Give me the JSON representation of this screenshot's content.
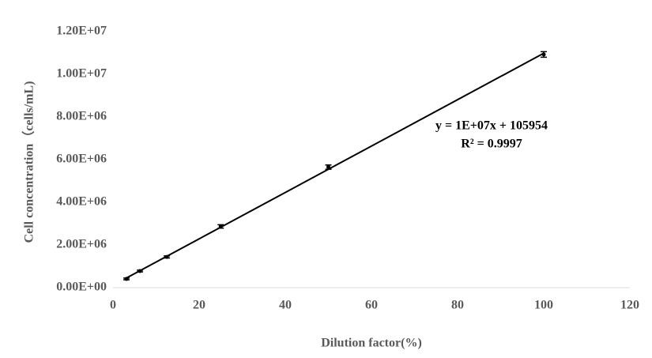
{
  "chart_data": {
    "type": "scatter",
    "x_label": "Dilution factor(%)",
    "y_label": "Cell concentration（cells/mL)",
    "annotations": [
      "y = 1E+07x + 105954",
      "R² = 0.9997"
    ],
    "x": [
      3.125,
      6.25,
      12.5,
      25,
      50,
      100
    ],
    "values": [
      410000,
      780000,
      1440000,
      2870000,
      5650000,
      10930000
    ],
    "errors": [
      40000,
      40000,
      50000,
      80000,
      100000,
      130000
    ],
    "color": "#000000",
    "trendline": true,
    "xlim": [
      0,
      120
    ],
    "xticks": [
      0,
      20,
      40,
      60,
      80,
      100,
      120
    ],
    "ylim": [
      0,
      12000000
    ],
    "yticks": [
      {
        "value": 0,
        "label": "0.00E+00"
      },
      {
        "value": 2000000,
        "label": "2.00E+06"
      },
      {
        "value": 4000000,
        "label": "4.00E+06"
      },
      {
        "value": 6000000,
        "label": "6.00E+06"
      },
      {
        "value": 8000000,
        "label": "8.00E+06"
      },
      {
        "value": 10000000,
        "label": "1.00E+07"
      },
      {
        "value": 12000000,
        "label": "1.20E+07"
      }
    ]
  }
}
